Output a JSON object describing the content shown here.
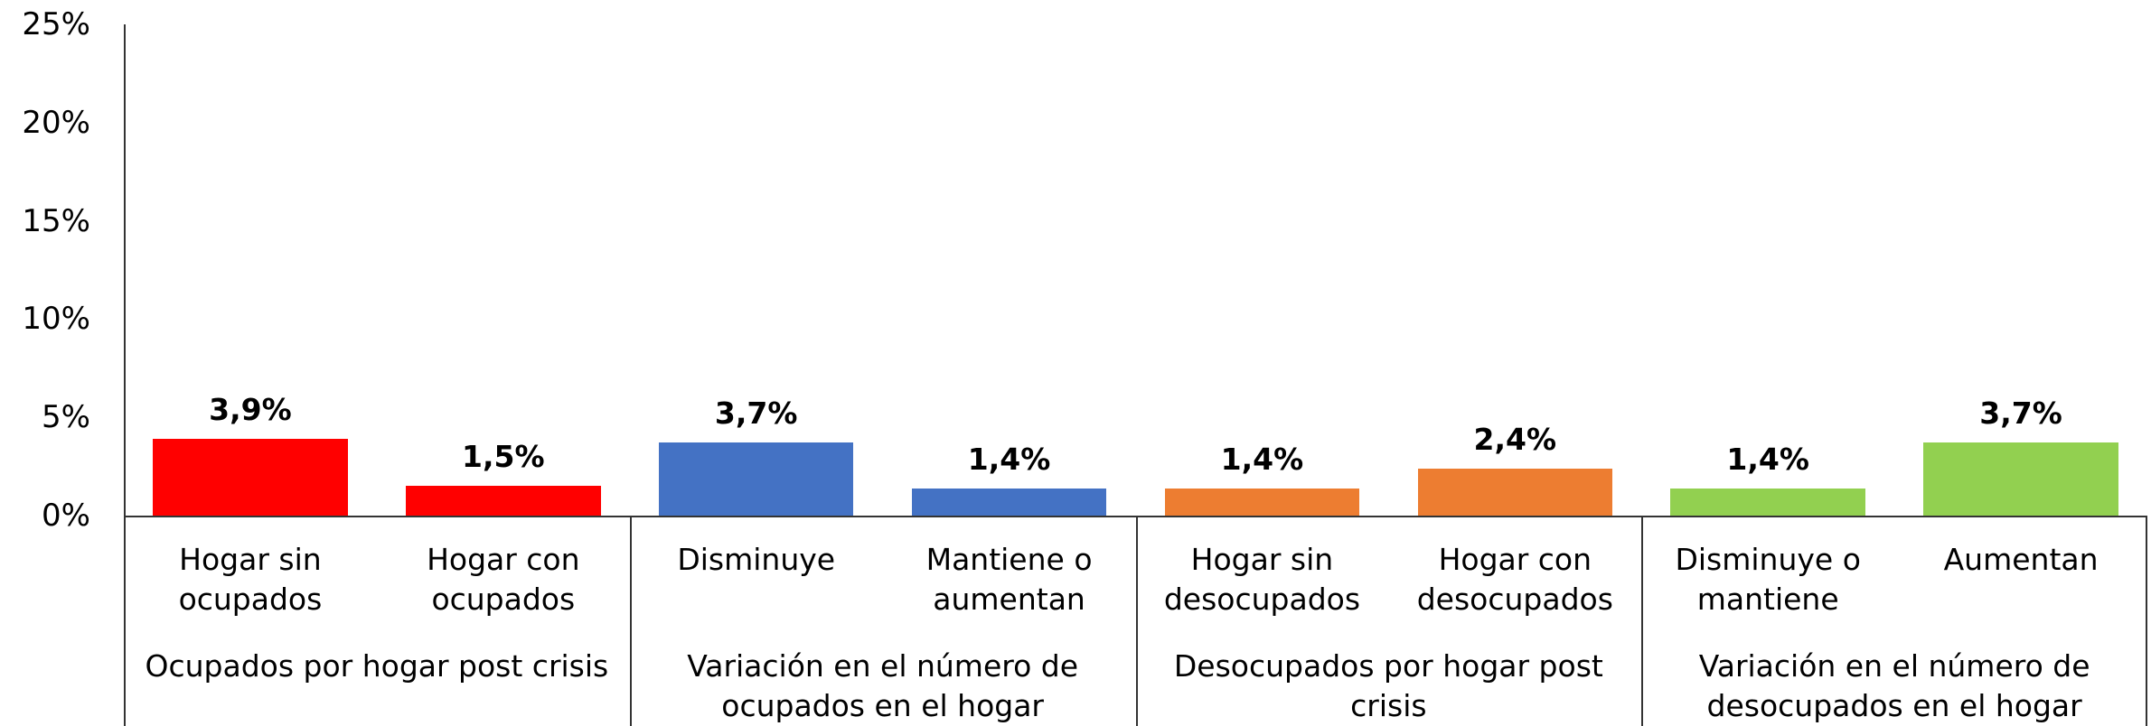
{
  "chart_data": {
    "type": "bar",
    "categories": [
      "Hogar sin ocupados",
      "Hogar con ocupados",
      "Disminuye",
      "Mantiene o aumentan",
      "Hogar sin desocupados",
      "Hogar con desocupados",
      "Disminuye o mantiene",
      "Aumentan"
    ],
    "values": [
      3.9,
      1.5,
      3.7,
      1.4,
      1.4,
      2.4,
      1.4,
      3.7
    ],
    "value_labels": [
      "3,9%",
      "1,5%",
      "3,7%",
      "1,4%",
      "1,4%",
      "2,4%",
      "1,4%",
      "3,7%"
    ],
    "colors": [
      "#ff0000",
      "#ff0000",
      "#4472c4",
      "#4472c4",
      "#ed7d31",
      "#ed7d31",
      "#92d050",
      "#92d050"
    ],
    "groups": [
      "Ocupados por hogar post crisis",
      "Variación en el número de ocupados en el hogar",
      "Desocupados por hogar post crisis",
      "Variación en el número de desocupados en el hogar"
    ],
    "ylim": [
      0,
      25
    ],
    "yticks": [
      {
        "value": 0,
        "label": "0%"
      },
      {
        "value": 5,
        "label": "5%"
      },
      {
        "value": 10,
        "label": "10%"
      },
      {
        "value": 15,
        "label": "15%"
      },
      {
        "value": 20,
        "label": "20%"
      },
      {
        "value": 25,
        "label": "25%"
      }
    ],
    "grid": false
  }
}
